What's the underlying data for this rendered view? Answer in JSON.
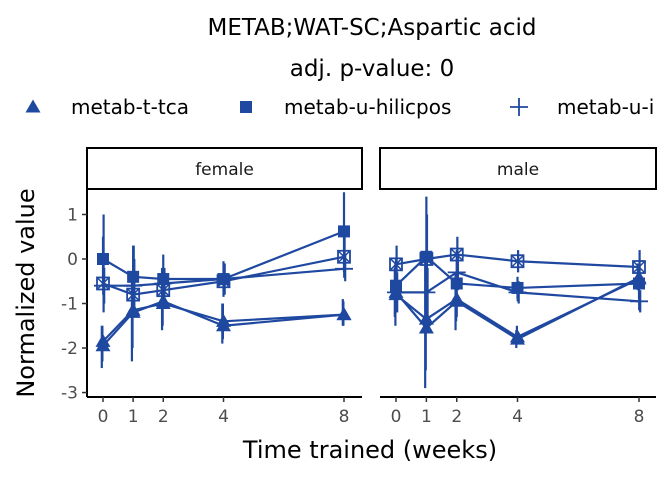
{
  "title_line1": "METAB;WAT-SC;Aspartic acid",
  "title_line2": "adj. p-value: 0",
  "legend": [
    {
      "label": "metab-t-tca",
      "shape": "triangle"
    },
    {
      "label": "metab-u-hilicpos",
      "shape": "square"
    },
    {
      "label": "metab-u-i",
      "shape": "plus"
    }
  ],
  "colors": {
    "series": "#1f48a0"
  },
  "chart_data": {
    "type": "line",
    "xlabel": "Time trained (weeks)",
    "ylabel": "Normalized value",
    "x_ticks": [
      0,
      1,
      2,
      4,
      8
    ],
    "y_ticks": [
      1,
      0,
      -1,
      -2,
      -3
    ],
    "ylim": [
      -3.1,
      1.55
    ],
    "facets": [
      {
        "label": "female",
        "series": [
          {
            "name": "metab-t-tca",
            "shape": "triangle",
            "x": [
              0,
              1,
              2,
              4,
              8
            ],
            "y": [
              -1.95,
              -1.2,
              -0.95,
              -1.5,
              -1.25
            ],
            "lo": [
              -2.45,
              -2.3,
              -1.6,
              -1.9,
              -1.5
            ],
            "hi": [
              -1.5,
              -0.5,
              -0.2,
              -1.0,
              -0.9
            ]
          },
          {
            "name": "metab-t-tca",
            "shape": "triangle",
            "x": [
              0,
              1,
              2,
              4,
              8
            ],
            "y": [
              -1.85,
              -1.15,
              -1.0,
              -1.4,
              -1.25
            ],
            "lo": [
              -2.3,
              -2.0,
              -1.5,
              -1.8,
              -1.5
            ],
            "hi": [
              -1.5,
              -0.6,
              -0.5,
              -1.0,
              -0.95
            ]
          },
          {
            "name": "metab-u-hilicpos",
            "shape": "square",
            "x": [
              0,
              1,
              2,
              4,
              8
            ],
            "y": [
              0.0,
              -0.4,
              -0.45,
              -0.45,
              0.62
            ],
            "lo": [
              -0.6,
              -1.2,
              -0.9,
              -0.85,
              -0.3
            ],
            "hi": [
              0.5,
              0.3,
              0.1,
              -0.05,
              1.5
            ]
          },
          {
            "name": "metab-u-hilicpos",
            "shape": "squarex",
            "x": [
              0,
              1,
              2,
              4,
              8
            ],
            "y": [
              -0.55,
              -0.8,
              -0.7,
              -0.5,
              0.05
            ],
            "lo": [
              -1.2,
              -1.1,
              -1.0,
              -0.8,
              -0.4
            ],
            "hi": [
              1.0,
              0.3,
              -0.4,
              -0.2,
              0.5
            ]
          },
          {
            "name": "metab-u-i",
            "shape": "plus",
            "x": [
              0,
              1,
              2,
              4,
              8
            ],
            "y": [
              -0.6,
              -0.6,
              -0.55,
              -0.45,
              -0.22
            ],
            "lo": [
              -1.0,
              -1.1,
              -0.9,
              -0.8,
              -0.5
            ],
            "hi": [
              -0.2,
              0.0,
              -0.2,
              -0.1,
              0.1
            ]
          }
        ]
      },
      {
        "label": "male",
        "series": [
          {
            "name": "metab-t-tca",
            "shape": "triangle",
            "x": [
              0,
              1,
              2,
              4,
              8
            ],
            "y": [
              -0.75,
              -1.55,
              -0.95,
              -1.8,
              -0.42
            ],
            "lo": [
              -1.3,
              -2.9,
              -1.6,
              -2.0,
              -0.7
            ],
            "hi": [
              -0.2,
              0.1,
              -0.3,
              -1.6,
              -0.1
            ]
          },
          {
            "name": "metab-t-tca",
            "shape": "triangle",
            "x": [
              0,
              1,
              2,
              4,
              8
            ],
            "y": [
              -0.8,
              -1.35,
              -0.9,
              -1.75,
              -0.45
            ],
            "lo": [
              -1.5,
              -2.5,
              -1.4,
              -1.9,
              -0.7
            ],
            "hi": [
              -0.1,
              0.0,
              -0.4,
              -1.5,
              -0.2
            ]
          },
          {
            "name": "metab-u-hilicpos",
            "shape": "square",
            "x": [
              0,
              1,
              2,
              4,
              8
            ],
            "y": [
              -0.6,
              0.05,
              -0.55,
              -0.65,
              -0.55
            ],
            "lo": [
              -1.2,
              -0.5,
              -1.3,
              -0.9,
              -0.9
            ],
            "hi": [
              0.0,
              1.4,
              0.2,
              -0.4,
              -0.2
            ]
          },
          {
            "name": "metab-u-hilicpos",
            "shape": "squarex",
            "x": [
              0,
              1,
              2,
              4,
              8
            ],
            "y": [
              -0.12,
              0.0,
              0.1,
              -0.05,
              -0.18
            ],
            "lo": [
              -0.5,
              -0.5,
              -0.4,
              -0.3,
              -0.5
            ],
            "hi": [
              0.3,
              1.0,
              0.5,
              0.2,
              0.2
            ]
          },
          {
            "name": "metab-u-i",
            "shape": "plus",
            "x": [
              0,
              1,
              2,
              4,
              8
            ],
            "y": [
              -0.75,
              -0.75,
              -0.3,
              -0.75,
              -0.95
            ],
            "lo": [
              -1.2,
              -1.3,
              -0.7,
              -1.0,
              -1.2
            ],
            "hi": [
              -0.3,
              -0.2,
              0.1,
              -0.5,
              -0.7
            ]
          }
        ]
      }
    ]
  }
}
